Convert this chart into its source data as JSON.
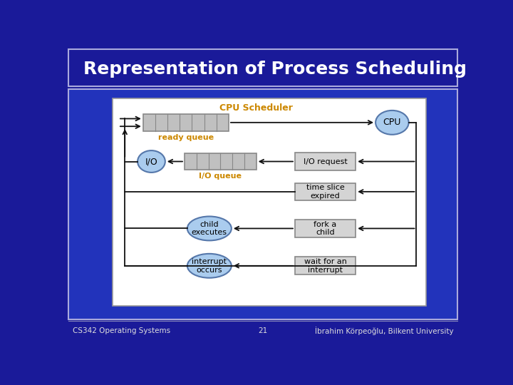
{
  "title": "Representation of Process Scheduling",
  "footer_left": "CS342 Operating Systems",
  "footer_center": "21",
  "footer_right": "İbrahim Körpeoğlu, Bilkent University",
  "slide_bg": "#1a1a99",
  "title_color": "#ffffff",
  "title_fontsize": 18,
  "cpu_scheduler_color": "#cc8800",
  "ready_queue_label_color": "#cc8800",
  "io_queue_label_color": "#cc8800",
  "queue_fill": "#c0c0c0",
  "queue_stroke": "#888888",
  "box_fill": "#d4d4d4",
  "box_stroke": "#888888",
  "ellipse_fill": "#aaccee",
  "ellipse_stroke": "#5577aa",
  "arrow_color": "#111111",
  "line_color": "#111111",
  "footer_color": "#dddddd",
  "white_box_bg": "#ffffff",
  "outer_box_bg": "#3344aa",
  "title_bar_border": "#aaaadd"
}
